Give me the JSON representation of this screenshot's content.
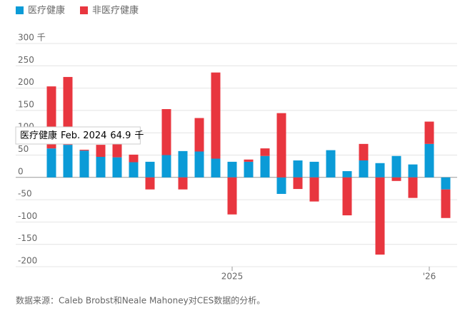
{
  "chart_data": {
    "type": "bar",
    "stacked": true,
    "categories": [
      null,
      null,
      null,
      null,
      null,
      null,
      null,
      null,
      null,
      null,
      null,
      "2025",
      null,
      null,
      null,
      null,
      null,
      null,
      null,
      null,
      null,
      null,
      null,
      "'26",
      null
    ],
    "series": [
      {
        "name": "医疗健康",
        "color": "#0b9bd7",
        "values": [
          64.9,
          73,
          60,
          46,
          45,
          34,
          35,
          50,
          59,
          58,
          42,
          35,
          35,
          48,
          -37,
          38,
          35,
          61,
          14,
          38,
          32,
          48,
          29,
          75,
          -27
        ]
      },
      {
        "name": "非医疗健康",
        "color": "#e8363f",
        "values": [
          139,
          152,
          2,
          27,
          40,
          17,
          -27,
          103,
          -27,
          75,
          193,
          -83,
          5,
          17,
          144,
          -26,
          -54,
          0,
          -85,
          37,
          -173,
          -8,
          -46,
          50,
          -64
        ]
      }
    ],
    "ylim": [
      -200,
      300
    ],
    "yticks": [
      {
        "value": 300,
        "label": "300 千"
      },
      250,
      200,
      150,
      100,
      50,
      0,
      -50,
      -100,
      -150,
      -200
    ],
    "grid": true,
    "tooltip": {
      "series": "医疗健康",
      "date": "Feb. 2024",
      "value": 64.9,
      "unit": "千"
    },
    "source": "数据来源：Caleb Brobst和Neale Mahoney对CES数据的分析。"
  }
}
